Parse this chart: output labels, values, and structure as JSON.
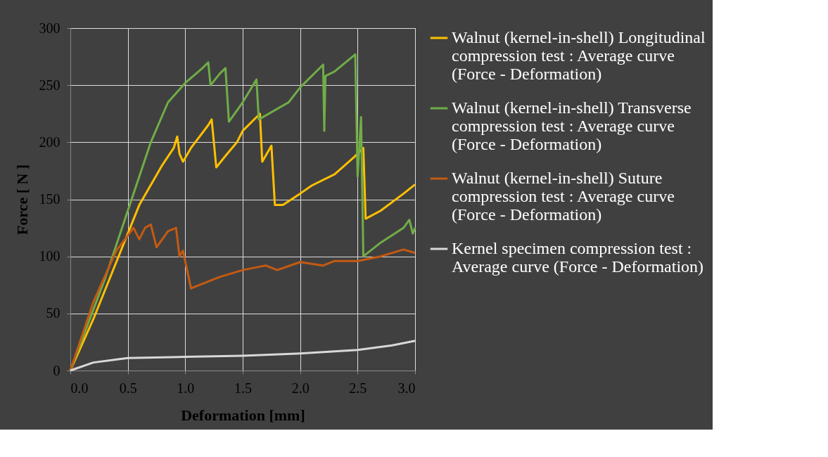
{
  "chart_data": {
    "type": "line",
    "xlabel": "Deformation  [mm]",
    "ylabel": "Force  [ N ]",
    "xlim": [
      0,
      3
    ],
    "ylim": [
      0,
      300
    ],
    "xticks": [
      {
        "value": 0,
        "label": "0.0"
      },
      {
        "value": 0.5,
        "label": "0.5"
      },
      {
        "value": 1,
        "label": "1.0"
      },
      {
        "value": 1.5,
        "label": "1.5"
      },
      {
        "value": 2,
        "label": "2.0"
      },
      {
        "value": 2.5,
        "label": "2.5"
      },
      {
        "value": 3,
        "label": "3.0"
      }
    ],
    "yticks": [
      0,
      50,
      100,
      150,
      200,
      250,
      300
    ],
    "grid": true,
    "legend": "right",
    "marker": "none",
    "line_style": "solid",
    "series": [
      {
        "name": "Walnut (kernel-in-shell) Longitudinal compression test : Average curve (Force - Deformation)",
        "color": "#ffc000",
        "x": [
          0,
          0.2,
          0.4,
          0.6,
          0.8,
          0.9,
          0.93,
          0.95,
          0.98,
          1.05,
          1.2,
          1.23,
          1.27,
          1.35,
          1.45,
          1.5,
          1.65,
          1.67,
          1.75,
          1.78,
          1.85,
          2.0,
          2.1,
          2.3,
          2.47,
          2.55,
          2.57,
          2.7,
          2.9,
          3.0
        ],
        "values": [
          0,
          45,
          95,
          145,
          180,
          195,
          205,
          190,
          183,
          195,
          215,
          220,
          178,
          188,
          200,
          210,
          225,
          183,
          197,
          145,
          145,
          155,
          162,
          172,
          187,
          195,
          133,
          140,
          155,
          163
        ]
      },
      {
        "name": "Walnut (kernel-in-shell) Transverse compression test : Average curve (Force - Deformation)",
        "color": "#70ad47",
        "x": [
          0,
          0.3,
          0.5,
          0.7,
          0.85,
          1.0,
          1.15,
          1.2,
          1.22,
          1.3,
          1.35,
          1.38,
          1.5,
          1.62,
          1.64,
          1.9,
          2.0,
          2.2,
          2.21,
          2.22,
          2.3,
          2.48,
          2.5,
          2.53,
          2.55,
          2.7,
          2.9,
          2.95,
          2.98,
          3.0
        ],
        "values": [
          0,
          80,
          140,
          200,
          235,
          252,
          265,
          270,
          250,
          260,
          265,
          218,
          235,
          255,
          220,
          235,
          248,
          268,
          210,
          258,
          262,
          277,
          170,
          222,
          100,
          112,
          125,
          132,
          120,
          125
        ]
      },
      {
        "name": "Walnut (kernel-in-shell) Suture compression test : Average curve (Force - Deformation)",
        "color": "#c55a11",
        "x": [
          0,
          0.2,
          0.4,
          0.55,
          0.6,
          0.65,
          0.7,
          0.75,
          0.85,
          0.92,
          0.95,
          0.98,
          1.05,
          1.1,
          1.3,
          1.5,
          1.7,
          1.8,
          2.0,
          2.2,
          2.3,
          2.5,
          2.7,
          2.9,
          3.0
        ],
        "values": [
          0,
          60,
          105,
          125,
          115,
          125,
          128,
          108,
          122,
          125,
          100,
          105,
          72,
          74,
          82,
          88,
          92,
          88,
          95,
          92,
          96,
          96,
          100,
          106,
          103
        ]
      },
      {
        "name": "Kernel specimen compression test : Average curve (Force - Deformation)",
        "color": "#d9d9d9",
        "x": [
          0,
          0.2,
          0.5,
          1.0,
          1.5,
          2.0,
          2.5,
          2.8,
          3.0
        ],
        "values": [
          0,
          7,
          11,
          12,
          13,
          15,
          18,
          22,
          26
        ]
      }
    ]
  }
}
